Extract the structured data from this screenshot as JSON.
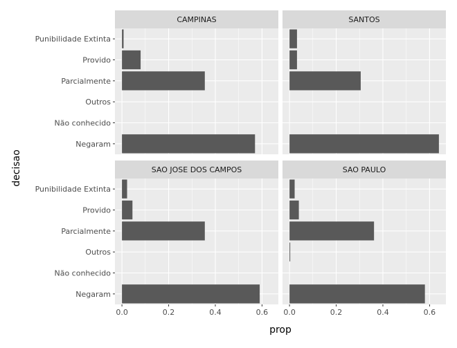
{
  "chart_data": {
    "type": "bar",
    "orientation": "horizontal",
    "facet_layout": "2x2",
    "xlabel": "prop",
    "ylabel": "decisao",
    "xlim": [
      -0.03,
      0.67
    ],
    "x_ticks": [
      0.0,
      0.2,
      0.4,
      0.6
    ],
    "x_tick_labels": [
      "0.0",
      "0.2",
      "0.4",
      "0.6"
    ],
    "categories": [
      "Negaram",
      "Não conhecido",
      "Outros",
      "Parcialmente",
      "Provido",
      "Punibilidade Extinta"
    ],
    "grid": true,
    "colors": {
      "bar": "#595959",
      "panel": "#ebebeb",
      "strip": "#d9d9d9",
      "grid": "#ffffff"
    },
    "panels": [
      {
        "name": "CAMPINAS",
        "values": [
          0.57,
          0,
          0,
          0.355,
          0.08,
          0.007
        ]
      },
      {
        "name": "SANTOS",
        "values": [
          0.64,
          0,
          0,
          0.305,
          0.032,
          0.032
        ]
      },
      {
        "name": "SAO JOSE DOS CAMPOS",
        "values": [
          0.59,
          0,
          0,
          0.355,
          0.045,
          0.022
        ]
      },
      {
        "name": "SAO PAULO",
        "values": [
          0.58,
          0,
          0.003,
          0.362,
          0.04,
          0.022
        ]
      }
    ]
  }
}
